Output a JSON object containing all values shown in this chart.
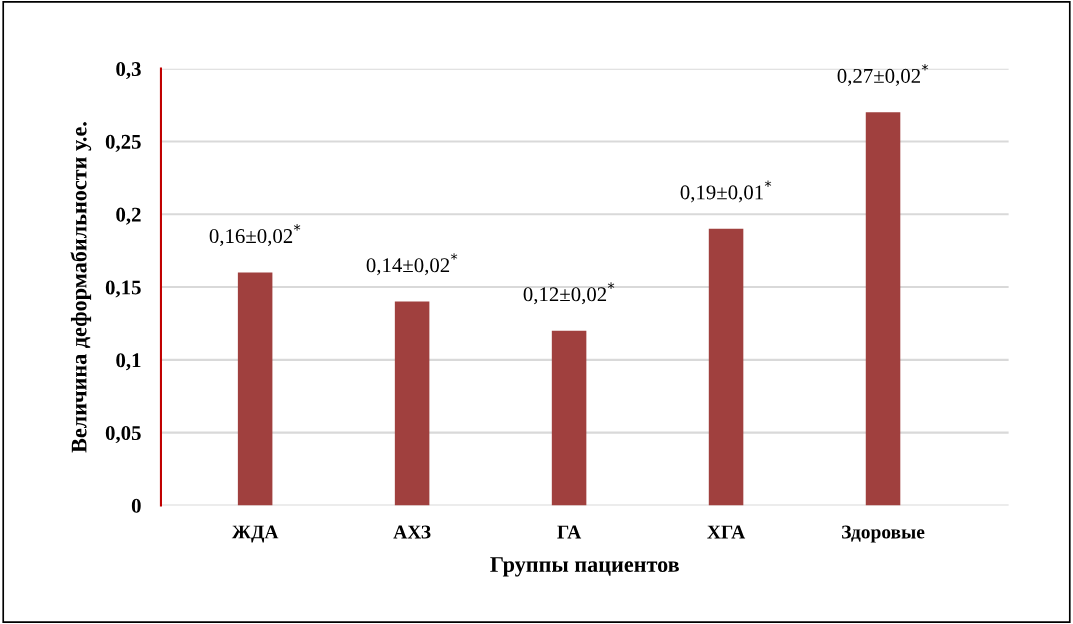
{
  "chart_data": {
    "type": "bar",
    "xlabel": "Группы пациентов",
    "ylabel": "Величина деформабильности у.е.",
    "categories": [
      "ЖДА",
      "АХЗ",
      "ГА",
      "ХГА",
      "Здоровые"
    ],
    "values": [
      0.16,
      0.14,
      0.12,
      0.19,
      0.27
    ],
    "value_labels": [
      "0,16±0,02$^{*}$",
      "0,14±0,02$^{*}$",
      "0,12±0,02$^{*}$",
      "0,19±0,01$^{*}$",
      "0,27±0,02$^{*}$"
    ],
    "color": "#a0403e",
    "ylim": [
      0,
      0.3
    ],
    "yticks": [
      {
        "value": 0,
        "label": "0"
      },
      {
        "value": 0.05,
        "label": "0,05"
      },
      {
        "value": 0.1,
        "label": "0,1"
      },
      {
        "value": 0.15,
        "label": "0,15"
      },
      {
        "value": 0.2,
        "label": "0,2"
      },
      {
        "value": 0.25,
        "label": "0,25"
      },
      {
        "value": 0.3,
        "label": "0,3"
      }
    ],
    "grid": "y",
    "legend": false
  }
}
